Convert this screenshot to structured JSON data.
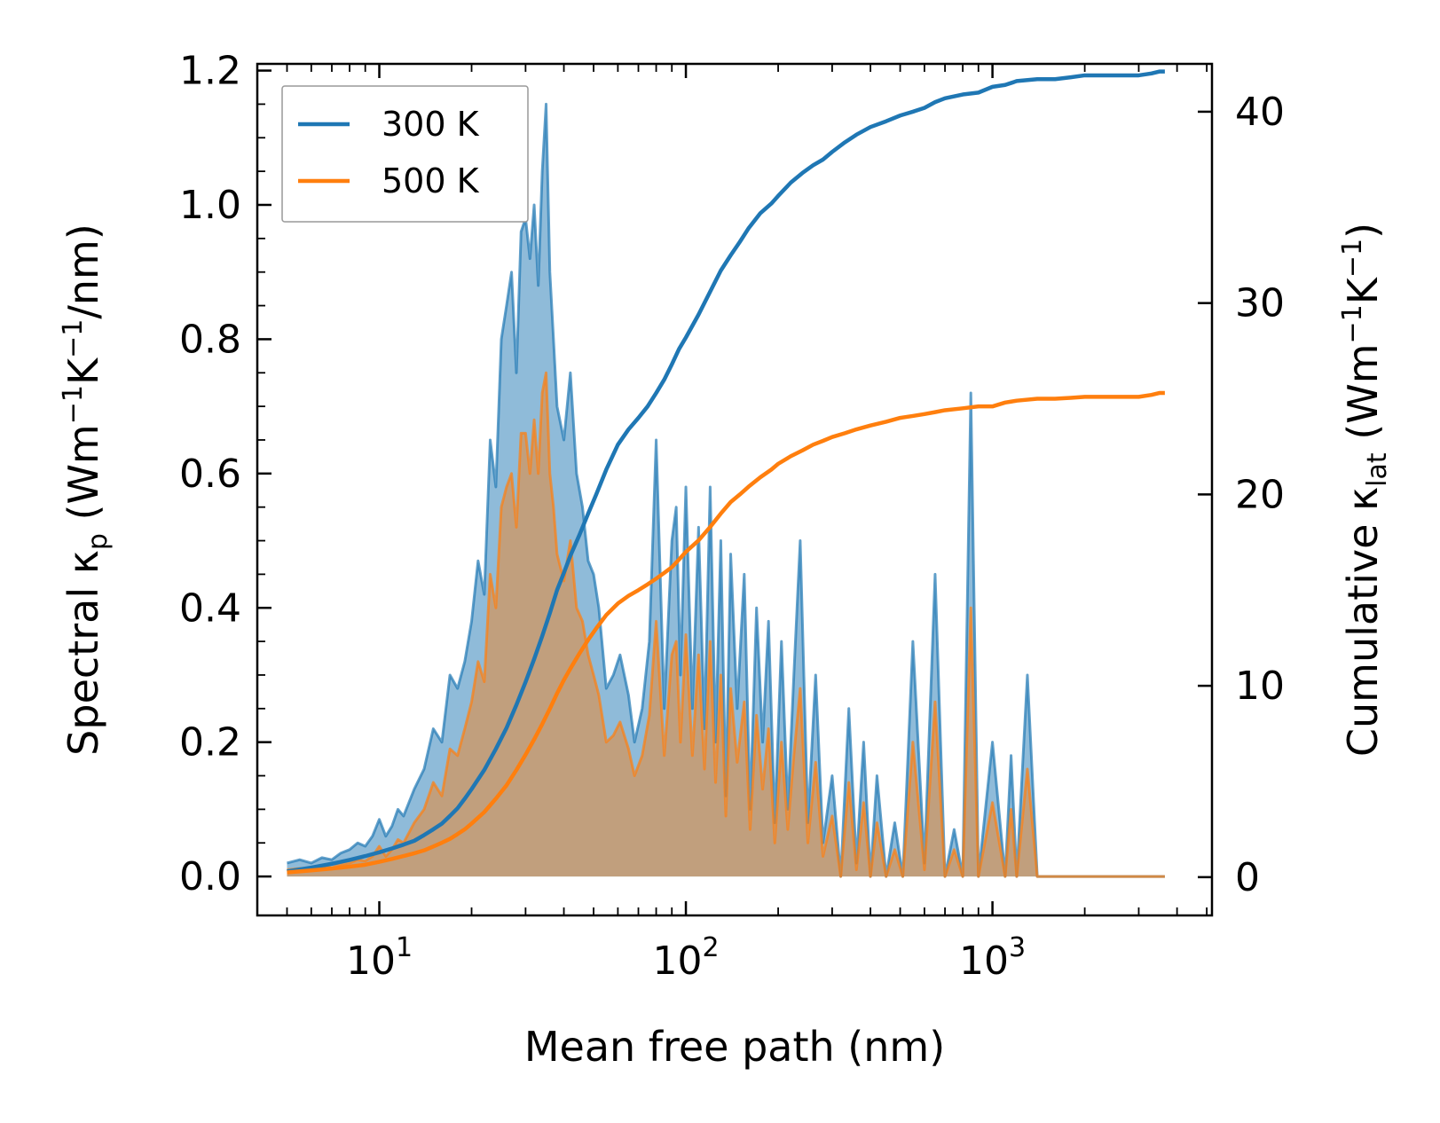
{
  "chart_data": {
    "type": "line",
    "x_scale": "log",
    "xlim": [
      4,
      5200
    ],
    "ylim_left": [
      -0.058,
      1.21
    ],
    "ylim_right": [
      -2.0,
      42.5
    ],
    "xlabel": "Mean free path (nm)",
    "ylabel_left": {
      "main": "Spectral κ",
      "sub": "p",
      "unit_prefix": " (Wm",
      "exp1": "−1",
      "mid": "K",
      "exp2": "−1",
      "unit_suffix": "/nm)"
    },
    "ylabel_right": {
      "main": "Cumulative κ",
      "sub": "lat",
      "unit_prefix": " (Wm",
      "exp1": "−1",
      "mid": "K",
      "exp2": "−1",
      "unit_suffix": ")"
    },
    "x_ticks": [
      {
        "value": 10,
        "base": "10",
        "exp": "1"
      },
      {
        "value": 100,
        "base": "10",
        "exp": "2"
      },
      {
        "value": 1000,
        "base": "10",
        "exp": "3"
      }
    ],
    "y_ticks_left": [
      "0.0",
      "0.2",
      "0.4",
      "0.6",
      "0.8",
      "1.0",
      "1.2"
    ],
    "y_ticks_right": [
      "0",
      "10",
      "20",
      "30",
      "40"
    ],
    "legend": {
      "position": "upper-left",
      "entries": [
        {
          "label": "300 K",
          "color": "#1f77b4"
        },
        {
          "label": "500 K",
          "color": "#ff7f0e"
        }
      ]
    },
    "colors": {
      "300K": "#1f77b4",
      "500K": "#ff7f0e"
    },
    "spectral": {
      "x": [
        5,
        5.5,
        6,
        6.5,
        7,
        7.5,
        8,
        8.5,
        9,
        9.5,
        10,
        10.5,
        11,
        11.5,
        12,
        13,
        14,
        15,
        16,
        17,
        18,
        19,
        20,
        21,
        22,
        23,
        24,
        25,
        26,
        27,
        28,
        29,
        30,
        31,
        32,
        33,
        34,
        35,
        36,
        37,
        38,
        40,
        42,
        44,
        46,
        48,
        50,
        52,
        55,
        58,
        61,
        65,
        68,
        72,
        76,
        80,
        85,
        90,
        93,
        96,
        100,
        105,
        110,
        115,
        120,
        125,
        130,
        135,
        140,
        147,
        155,
        162,
        170,
        178,
        186,
        195,
        205,
        215,
        225,
        236,
        250,
        265,
        280,
        300,
        320,
        340,
        360,
        380,
        400,
        420,
        450,
        480,
        510,
        550,
        600,
        650,
        700,
        750,
        800,
        850,
        900,
        1000,
        1100,
        1150,
        1200,
        1300,
        1400,
        1500,
        1650,
        1800,
        1900,
        2000,
        3000,
        3300,
        3500,
        3650
      ],
      "k300": [
        0.02,
        0.025,
        0.02,
        0.028,
        0.025,
        0.035,
        0.04,
        0.05,
        0.045,
        0.06,
        0.085,
        0.06,
        0.075,
        0.1,
        0.09,
        0.13,
        0.16,
        0.22,
        0.2,
        0.3,
        0.28,
        0.32,
        0.38,
        0.47,
        0.42,
        0.65,
        0.58,
        0.8,
        0.85,
        0.9,
        0.75,
        0.96,
        0.98,
        0.92,
        1.0,
        0.88,
        1.05,
        1.15,
        0.9,
        0.8,
        0.7,
        0.65,
        0.75,
        0.6,
        0.55,
        0.47,
        0.45,
        0.4,
        0.28,
        0.3,
        0.33,
        0.27,
        0.2,
        0.25,
        0.35,
        0.65,
        0.25,
        0.5,
        0.55,
        0.3,
        0.58,
        0.25,
        0.52,
        0.22,
        0.58,
        0.2,
        0.5,
        0.12,
        0.48,
        0.25,
        0.45,
        0.1,
        0.4,
        0.2,
        0.38,
        0.08,
        0.35,
        0.1,
        0.3,
        0.5,
        0.08,
        0.3,
        0.05,
        0.15,
        0.0,
        0.25,
        0.02,
        0.2,
        0.0,
        0.15,
        0.0,
        0.08,
        0.0,
        0.35,
        0.02,
        0.45,
        0.0,
        0.07,
        0.0,
        0.72,
        0.0,
        0.2,
        0.0,
        0.18,
        0.0,
        0.3,
        0.0,
        0.0,
        0.0,
        0.0,
        0.0,
        0.0,
        0.0,
        0.0,
        0.0,
        0.0,
        0.0,
        0.0
      ],
      "k500": [
        0.01,
        0.012,
        0.01,
        0.015,
        0.013,
        0.018,
        0.02,
        0.025,
        0.023,
        0.03,
        0.045,
        0.03,
        0.04,
        0.055,
        0.05,
        0.08,
        0.1,
        0.14,
        0.12,
        0.19,
        0.18,
        0.22,
        0.26,
        0.32,
        0.29,
        0.45,
        0.4,
        0.55,
        0.58,
        0.6,
        0.52,
        0.66,
        0.66,
        0.6,
        0.68,
        0.6,
        0.72,
        0.75,
        0.6,
        0.55,
        0.48,
        0.44,
        0.5,
        0.4,
        0.38,
        0.33,
        0.3,
        0.27,
        0.2,
        0.21,
        0.23,
        0.19,
        0.15,
        0.18,
        0.24,
        0.38,
        0.18,
        0.33,
        0.35,
        0.2,
        0.36,
        0.18,
        0.33,
        0.16,
        0.35,
        0.14,
        0.3,
        0.09,
        0.28,
        0.17,
        0.26,
        0.07,
        0.24,
        0.13,
        0.22,
        0.05,
        0.2,
        0.07,
        0.18,
        0.28,
        0.05,
        0.17,
        0.03,
        0.09,
        0.0,
        0.14,
        0.01,
        0.11,
        0.0,
        0.08,
        0.0,
        0.04,
        0.0,
        0.2,
        0.01,
        0.26,
        0.0,
        0.04,
        0.0,
        0.4,
        0.0,
        0.11,
        0.0,
        0.1,
        0.0,
        0.16,
        0.0,
        0.0,
        0.0,
        0.0,
        0.0,
        0.0,
        0.0,
        0.0,
        0.0,
        0.0,
        0.0,
        0.0
      ]
    },
    "cumulative": {
      "x": [
        5,
        6,
        7,
        8,
        9,
        10,
        11,
        12,
        13,
        14,
        15,
        16,
        17,
        18,
        19,
        20,
        22,
        24,
        26,
        28,
        30,
        32,
        34,
        36,
        38,
        40,
        42,
        45,
        48,
        51,
        55,
        60,
        65,
        70,
        75,
        80,
        85,
        90,
        95,
        100,
        110,
        120,
        130,
        140,
        150,
        160,
        175,
        190,
        200,
        220,
        240,
        260,
        280,
        300,
        330,
        360,
        400,
        450,
        500,
        550,
        600,
        650,
        700,
        800,
        900,
        1000,
        1100,
        1150,
        1200,
        1400,
        1600,
        1800,
        2000,
        3000,
        3300,
        3500,
        3650
      ],
      "c300": [
        0.3,
        0.5,
        0.7,
        0.9,
        1.1,
        1.3,
        1.5,
        1.7,
        1.9,
        2.2,
        2.5,
        2.8,
        3.2,
        3.6,
        4.1,
        4.6,
        5.6,
        6.7,
        7.8,
        9.0,
        10.2,
        11.4,
        12.6,
        13.8,
        15.0,
        15.9,
        16.8,
        17.9,
        19.0,
        20.0,
        21.3,
        22.6,
        23.4,
        24.0,
        24.6,
        25.3,
        26.0,
        26.8,
        27.6,
        28.2,
        29.4,
        30.6,
        31.7,
        32.5,
        33.2,
        33.9,
        34.7,
        35.2,
        35.6,
        36.3,
        36.8,
        37.2,
        37.5,
        37.9,
        38.4,
        38.8,
        39.2,
        39.5,
        39.8,
        40.0,
        40.2,
        40.5,
        40.7,
        40.9,
        41.0,
        41.3,
        41.4,
        41.5,
        41.6,
        41.7,
        41.7,
        41.8,
        41.9,
        41.9,
        42.0,
        42.1,
        42.1
      ],
      "c500": [
        0.25,
        0.35,
        0.45,
        0.55,
        0.65,
        0.8,
        0.95,
        1.1,
        1.25,
        1.4,
        1.6,
        1.8,
        2.0,
        2.25,
        2.5,
        2.8,
        3.4,
        4.1,
        4.8,
        5.6,
        6.4,
        7.2,
        8.0,
        8.8,
        9.6,
        10.3,
        10.9,
        11.7,
        12.4,
        13.0,
        13.7,
        14.3,
        14.7,
        15.0,
        15.3,
        15.6,
        15.9,
        16.2,
        16.6,
        17.0,
        17.6,
        18.3,
        19.0,
        19.6,
        20.0,
        20.4,
        20.9,
        21.3,
        21.6,
        22.0,
        22.3,
        22.6,
        22.8,
        23.0,
        23.2,
        23.4,
        23.6,
        23.8,
        24.0,
        24.1,
        24.2,
        24.3,
        24.4,
        24.5,
        24.6,
        24.6,
        24.8,
        24.85,
        24.9,
        25.0,
        25.0,
        25.05,
        25.1,
        25.1,
        25.2,
        25.3,
        25.3
      ]
    }
  }
}
